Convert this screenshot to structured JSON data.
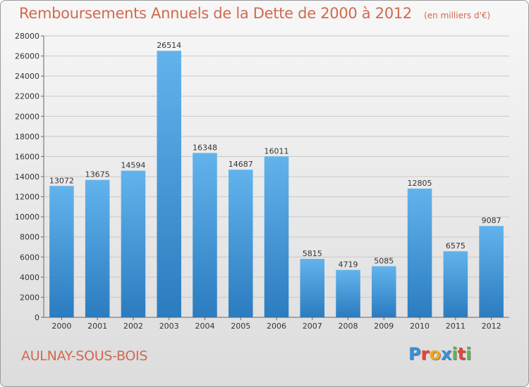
{
  "header": {
    "title": "Remboursements Annuels de la Dette de 2000 à 2012",
    "subtitle": "(en milliers d'€)"
  },
  "footer": {
    "city": "AULNAY-SOUS-BOIS",
    "brand": "Proxiti",
    "brand_letters": [
      {
        "char": "P",
        "color": "#3a8fd6"
      },
      {
        "char": "r",
        "color": "#e8423b"
      },
      {
        "char": "o",
        "color": "#f4a623"
      },
      {
        "char": "x",
        "color": "#3a8fd6"
      },
      {
        "char": "i",
        "color": "#5db84a"
      },
      {
        "char": "t",
        "color": "#e8423b"
      },
      {
        "char": "i",
        "color": "#5db84a"
      }
    ]
  },
  "chart_data": {
    "type": "bar",
    "categories": [
      "2000",
      "2001",
      "2002",
      "2003",
      "2004",
      "2005",
      "2006",
      "2007",
      "2008",
      "2009",
      "2010",
      "2011",
      "2012"
    ],
    "values": [
      13072,
      13675,
      14594,
      26514,
      16348,
      14687,
      16011,
      5815,
      4719,
      5085,
      12805,
      6575,
      9087
    ],
    "data_labels": [
      "13072",
      "13675",
      "14594",
      "26514",
      "16348",
      "14687",
      "16011",
      "5815",
      "4719",
      "5085",
      "12805",
      "6575",
      "9087"
    ],
    "ylim": [
      0,
      28000
    ],
    "yticks": [
      0,
      2000,
      4000,
      6000,
      8000,
      10000,
      12000,
      14000,
      16000,
      18000,
      20000,
      22000,
      24000,
      26000,
      28000
    ],
    "grid": true,
    "bar_color_top": "#62b3ec",
    "bar_color_bottom": "#2b7cc0"
  }
}
